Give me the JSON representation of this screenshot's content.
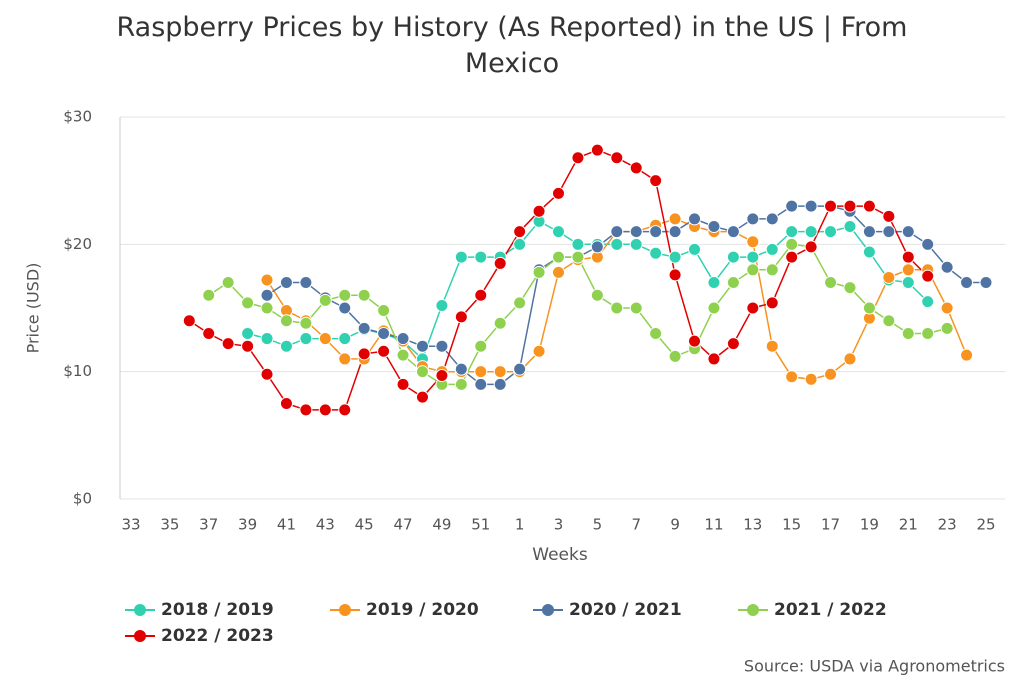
{
  "chart_data": {
    "type": "line",
    "title": "Raspberry Prices by History (As Reported) in the US | From Mexico",
    "xlabel": "Weeks",
    "ylabel": "Price (USD)",
    "source": "Source: USDA via Agronometrics",
    "categories": [
      33,
      null,
      35,
      null,
      37,
      null,
      39,
      null,
      41,
      null,
      43,
      null,
      45,
      null,
      47,
      null,
      49,
      null,
      51,
      null,
      1,
      null,
      3,
      null,
      5,
      null,
      7,
      null,
      9,
      null,
      11,
      null,
      13,
      null,
      15,
      null,
      17,
      null,
      19,
      null,
      21,
      null,
      23,
      null,
      25
    ],
    "ylim": [
      0,
      30
    ],
    "yticks": [
      {
        "value": 0,
        "label": "$0"
      },
      {
        "value": 10,
        "label": "$10"
      },
      {
        "value": 20,
        "label": "$20"
      },
      {
        "value": 30,
        "label": "$30"
      }
    ],
    "grid": true,
    "legend": "bottom",
    "series": [
      {
        "name": "2018 / 2019",
        "color": "#2fd1b0",
        "values": [
          null,
          null,
          null,
          null,
          null,
          null,
          13.0,
          12.6,
          12.0,
          12.6,
          12.6,
          12.6,
          13.3,
          13.0,
          12.4,
          11.0,
          15.2,
          19.0,
          19.0,
          19.0,
          20.0,
          21.8,
          21.0,
          20.0,
          20.0,
          20.0,
          20.0,
          19.3,
          19.0,
          19.6,
          17.0,
          19.0,
          19.0,
          19.6,
          21.0,
          21.0,
          21.0,
          21.4,
          19.4,
          17.2,
          17.0,
          15.5,
          null,
          null,
          null
        ]
      },
      {
        "name": "2019 / 2020",
        "color": "#f7931e",
        "values": [
          null,
          null,
          null,
          null,
          null,
          null,
          null,
          17.2,
          14.8,
          14.0,
          12.6,
          11.0,
          11.0,
          13.2,
          12.4,
          10.4,
          10.0,
          10.0,
          10.0,
          10.0,
          10.0,
          11.6,
          17.8,
          18.8,
          19.0,
          21.0,
          21.0,
          21.5,
          22.0,
          21.4,
          21.0,
          21.0,
          20.2,
          12.0,
          9.6,
          9.4,
          9.8,
          11.0,
          14.2,
          17.4,
          18.0,
          18.0,
          15.0,
          11.3,
          null
        ]
      },
      {
        "name": "2020 / 2021",
        "color": "#4f73a3",
        "values": [
          null,
          null,
          null,
          null,
          null,
          null,
          null,
          16,
          17,
          17,
          15.8,
          15,
          13.4,
          13,
          12.6,
          12,
          12,
          10.2,
          9,
          9,
          10.2,
          18,
          19,
          19,
          19.8,
          21,
          21,
          21,
          21,
          22,
          21.4,
          21,
          22,
          22,
          23,
          23,
          23,
          22.6,
          21,
          21,
          21,
          20,
          18.2,
          17,
          17
        ]
      },
      {
        "name": "2021 / 2022",
        "color": "#8fd14f",
        "values": [
          null,
          null,
          null,
          null,
          16,
          17,
          15.4,
          15,
          14,
          13.8,
          15.6,
          16,
          16,
          14.8,
          11.3,
          10,
          9,
          9,
          12,
          13.8,
          15.4,
          17.8,
          19,
          19,
          16,
          15,
          15,
          13,
          11.2,
          11.8,
          15,
          17,
          18,
          18,
          20,
          19.8,
          17,
          16.6,
          15,
          14,
          13,
          13,
          13.4,
          null,
          null
        ]
      },
      {
        "name": "2022 / 2023",
        "color": "#e00000",
        "values": [
          null,
          null,
          null,
          14,
          13,
          12.2,
          12,
          9.8,
          7.5,
          7,
          7,
          7,
          11.4,
          11.6,
          9,
          8,
          9.7,
          14.3,
          16,
          18.5,
          21,
          22.6,
          24,
          26.8,
          27.4,
          26.8,
          26,
          25,
          17.6,
          12.4,
          11,
          12.2,
          15,
          15.4,
          19,
          19.8,
          23,
          23,
          23,
          22.2,
          19,
          17.5,
          null,
          null,
          null
        ]
      }
    ]
  }
}
